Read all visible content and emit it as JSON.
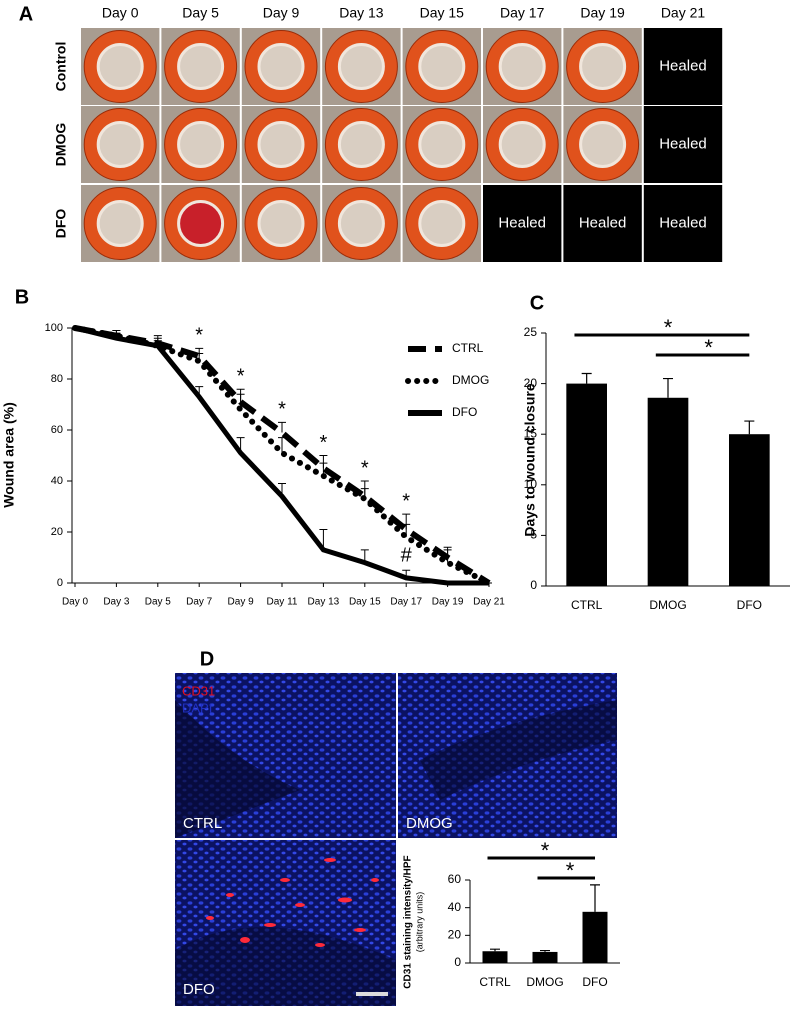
{
  "panel_labels": [
    "A",
    "B",
    "C",
    "D"
  ],
  "panel_a": {
    "columns": [
      "Day 0",
      "Day 5",
      "Day 9",
      "Day 13",
      "Day 15",
      "Day 17",
      "Day 19",
      "Day 21"
    ],
    "rows": [
      {
        "label": "Control",
        "cells": [
          null,
          null,
          null,
          null,
          null,
          null,
          null,
          "Healed"
        ]
      },
      {
        "label": "DMOG",
        "cells": [
          null,
          null,
          null,
          null,
          null,
          null,
          null,
          "Healed"
        ]
      },
      {
        "label": "DFO",
        "cells": [
          null,
          null,
          null,
          null,
          null,
          "Healed",
          "Healed",
          "Healed"
        ]
      }
    ]
  },
  "panel_d_images": {
    "labels": [
      "CTRL",
      "DMOG",
      "DFO"
    ],
    "stain_labels": [
      "CD31",
      "DAPI"
    ]
  },
  "chart_data": [
    {
      "type": "line",
      "y_label": "Wound area (%)",
      "categories": [
        "Day 0",
        "Day 3",
        "Day 5",
        "Day 7",
        "Day 9",
        "Day 11",
        "Day 13",
        "Day 15",
        "Day 17",
        "Day 19",
        "Day 21"
      ],
      "ylim": [
        0,
        100
      ],
      "yticks": [
        0,
        20,
        40,
        60,
        80,
        100
      ],
      "legend": "upper right",
      "series": [
        {
          "name": "CTRL",
          "color": "#000000",
          "dash": "dashed",
          "values": [
            100,
            97,
            94,
            89,
            71,
            59,
            45,
            34,
            21,
            10,
            0
          ],
          "errors": [
            0,
            2,
            3,
            3,
            5,
            4,
            5,
            6,
            6,
            4,
            0
          ]
        },
        {
          "name": "DMOG",
          "color": "#000000",
          "dash": "dotted",
          "values": [
            100,
            97,
            93,
            87,
            68,
            51,
            42,
            33,
            18,
            8,
            0
          ],
          "errors": [
            0,
            2,
            3,
            3,
            6,
            6,
            5,
            4,
            5,
            5,
            0
          ]
        },
        {
          "name": "DFO",
          "color": "#000000",
          "dash": "solid",
          "values": [
            100,
            96,
            93,
            73,
            51,
            34,
            13,
            8,
            2,
            0,
            0
          ],
          "errors": [
            0,
            2,
            2,
            4,
            6,
            5,
            8,
            5,
            3,
            0,
            0
          ]
        }
      ],
      "annotations": [
        "*",
        "*",
        "*",
        "*",
        "*",
        "*",
        "#"
      ]
    },
    {
      "type": "bar",
      "y_label": "Days to wound closure",
      "categories": [
        "CTRL",
        "DMOG",
        "DFO"
      ],
      "values": [
        20,
        18.6,
        15
      ],
      "errors": [
        1,
        1.9,
        1.3
      ],
      "color": "#000000",
      "ylim": [
        0,
        25
      ],
      "yticks": [
        0,
        5,
        10,
        15,
        20,
        25
      ],
      "significance": [
        {
          "label": "*",
          "from": "CTRL",
          "to": "DFO"
        },
        {
          "label": "*",
          "from": "DMOG",
          "to": "DFO"
        }
      ]
    },
    {
      "type": "bar",
      "y_label": "CD31 staining intensity/HPF",
      "y_sublabel": "(arbitrary units)",
      "categories": [
        "CTRL",
        "DMOG",
        "DFO"
      ],
      "values": [
        8.5,
        8,
        37
      ],
      "errors": [
        1.5,
        1,
        19.5
      ],
      "color": "#000000",
      "ylim": [
        0,
        60
      ],
      "yticks": [
        0,
        20,
        40,
        60
      ],
      "significance": [
        {
          "label": "*",
          "from": "CTRL",
          "to": "DFO"
        },
        {
          "label": "*",
          "from": "DMOG",
          "to": "DFO"
        }
      ]
    }
  ]
}
